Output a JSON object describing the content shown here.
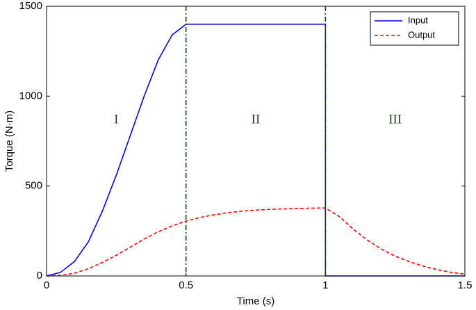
{
  "chart_data": {
    "type": "line",
    "x_label": "Time (s)",
    "y_label": "Torque (N·m)",
    "xlim": [
      0,
      1.5
    ],
    "ylim": [
      0,
      1500
    ],
    "xticks": [
      0,
      0.5,
      1,
      1.5
    ],
    "yticks": [
      0,
      500,
      1000,
      1500
    ],
    "grid": false,
    "legend": "upper right",
    "vlines": [
      0.5,
      1
    ],
    "vline_color": "#0b4d0b",
    "annotations": [
      "I",
      "II",
      "III"
    ],
    "series": [
      {
        "name": "Input",
        "color": "#0000ff",
        "style": "solid",
        "x": [
          0,
          0.05,
          0.1,
          0.15,
          0.2,
          0.25,
          0.3,
          0.35,
          0.4,
          0.45,
          0.5,
          1,
          1,
          1.5
        ],
        "values": [
          0,
          20,
          80,
          190,
          360,
          560,
          780,
          1000,
          1200,
          1340,
          1400,
          1400,
          0,
          0
        ]
      },
      {
        "name": "Output",
        "color": "#ff0000",
        "style": "dashed",
        "x": [
          0,
          0.05,
          0.1,
          0.15,
          0.2,
          0.25,
          0.3,
          0.35,
          0.4,
          0.45,
          0.5,
          0.55,
          0.6,
          0.65,
          0.7,
          0.75,
          0.8,
          0.85,
          0.9,
          0.95,
          1,
          1.05,
          1.1,
          1.15,
          1.2,
          1.25,
          1.3,
          1.35,
          1.4,
          1.45,
          1.5
        ],
        "values": [
          0,
          3,
          15,
          40,
          75,
          115,
          160,
          205,
          245,
          278,
          305,
          325,
          340,
          352,
          360,
          366,
          370,
          373,
          375,
          377,
          378,
          330,
          260,
          200,
          150,
          110,
          80,
          55,
          35,
          20,
          10
        ]
      }
    ]
  }
}
